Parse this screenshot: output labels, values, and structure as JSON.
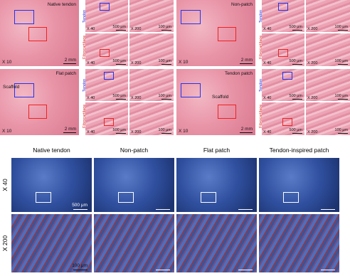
{
  "he_panels": [
    {
      "title": "Native tendon",
      "overview_mag": "X 10",
      "overview_scale": "2 mm"
    },
    {
      "title": "Non-patch",
      "overview_mag": "X 10",
      "overview_scale": "2 mm"
    },
    {
      "title": "Flat patch",
      "overview_mag": "X 10",
      "overview_scale": "2 mm",
      "annotation": "Scaffold"
    },
    {
      "title": "Tendon patch",
      "overview_mag": "X 10",
      "overview_scale": "2 mm",
      "annotation": "Scaffold"
    }
  ],
  "tissue_rows": [
    "Tendon",
    "Fibrocartilage"
  ],
  "zooms": [
    {
      "mag": "X 40",
      "scale": "500 μm"
    },
    {
      "mag": "X 200",
      "scale": "100 μm"
    }
  ],
  "masson": {
    "columns": [
      "Native tendon",
      "Non-patch",
      "Flat patch",
      "Tendon-inspired patch"
    ],
    "rows": [
      {
        "label": "X 40",
        "scale": "500 μm"
      },
      {
        "label": "X 200",
        "scale": "100 μm"
      }
    ]
  }
}
